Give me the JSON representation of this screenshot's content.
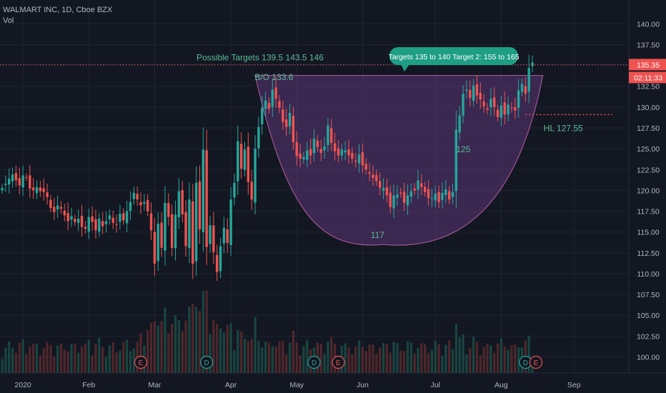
{
  "header": {
    "symbol_line": "WALMART INC, 1D, Cboe BZX",
    "volume_label": "Vol"
  },
  "chart_data": {
    "type": "candlestick",
    "title": "WALMART INC, 1D, Cboe BZX",
    "y_axis": {
      "min": 98.5,
      "max": 142,
      "ticks": [
        "100.00",
        "102.50",
        "105.00",
        "107.50",
        "110.00",
        "112.50",
        "115.00",
        "117.50",
        "120.00",
        "122.50",
        "125.00",
        "127.50",
        "130.00",
        "132.50",
        "135.00",
        "137.50",
        "140.00"
      ],
      "position": "right"
    },
    "x_axis": {
      "ticks": [
        {
          "label": "2020",
          "index": 6
        },
        {
          "label": "Feb",
          "index": 25
        },
        {
          "label": "Mar",
          "index": 44
        },
        {
          "label": "Apr",
          "index": 66
        },
        {
          "label": "May",
          "index": 85
        },
        {
          "label": "Jun",
          "index": 104
        },
        {
          "label": "Jul",
          "index": 125
        },
        {
          "label": "Aug",
          "index": 144
        },
        {
          "label": "Sep",
          "index": 165
        }
      ]
    },
    "last_price": {
      "value": 135.35,
      "label": "135.35",
      "countdown": "02:11:33"
    },
    "colors": {
      "up": "#26a69a",
      "down": "#ef5350",
      "cup_fill": "#6a3d8a",
      "cup_stroke": "#a25493",
      "annot_text": "#5dbb97",
      "price_line": "#ef5350",
      "callout_bg": "#1e9e85"
    },
    "annotations": {
      "possible_targets": {
        "text": "Possible Targets  139.5    143.5     146",
        "price": 135.1
      },
      "callout": {
        "text": "Targets 135 to 140 Target 2: 155 to 165"
      },
      "breakout": {
        "text": "B/O 133.6",
        "index": 84,
        "price": 133.6
      },
      "cup_bottom": {
        "text": "117",
        "index": 108,
        "price": 115.3
      },
      "handle_level": {
        "text": "125",
        "index": 131,
        "price": 124.6
      },
      "hl": {
        "text": "HL 127.55",
        "index": 148,
        "price": 126.7
      },
      "hl_line_price": 129.1
    },
    "events": [
      {
        "type": "E",
        "index": 40
      },
      {
        "type": "D",
        "index": 59
      },
      {
        "type": "D",
        "index": 90
      },
      {
        "type": "E",
        "index": 97
      },
      {
        "type": "D",
        "index": 151
      },
      {
        "type": "E",
        "index": 154
      }
    ],
    "closes": [
      120.3,
      120.8,
      121.4,
      121.9,
      121.2,
      120.6,
      121.8,
      121.5,
      120.2,
      120.0,
      120.4,
      119.9,
      119.8,
      119.2,
      117.9,
      117.4,
      118.2,
      117.8,
      117.0,
      116.3,
      116.9,
      116.2,
      116.6,
      115.6,
      115.4,
      116.8,
      116.2,
      115.2,
      116.6,
      115.7,
      116.3,
      117.0,
      116.1,
      115.9,
      117.2,
      116.4,
      117.5,
      118.6,
      119.7,
      118.9,
      118.2,
      118.6,
      117.5,
      115.2,
      111.2,
      116.0,
      113.1,
      118.5,
      116.8,
      113.1,
      117.1,
      119.9,
      117.1,
      113.3,
      118.9,
      111.2,
      120.9,
      115.3,
      124.9,
      113.2,
      115.8,
      112.6,
      110.2,
      113.3,
      115.5,
      113.7,
      118.9,
      120.9,
      125.9,
      122.6,
      124.9,
      121.0,
      118.9,
      125.0,
      127.6,
      129.9,
      130.8,
      129.8,
      132.1,
      131.0,
      129.9,
      128.2,
      127.6,
      129.3,
      125.8,
      124.1,
      123.8,
      124.0,
      124.8,
      124.2,
      126.2,
      125.2,
      124.5,
      125.3,
      127.8,
      125.7,
      124.7,
      124.2,
      124.9,
      124.8,
      124.2,
      123.8,
      123.5,
      124.3,
      123.0,
      122.5,
      122.0,
      121.5,
      121.1,
      120.3,
      120.3,
      119.4,
      118.0,
      119.4,
      119.5,
      119.6,
      118.5,
      119.4,
      119.9,
      120.0,
      121.2,
      120.4,
      119.8,
      119.1,
      119.1,
      119.6,
      118.6,
      119.7,
      120.1,
      118.9,
      119.8,
      127.3,
      129.0,
      131.6,
      132.1,
      131.1,
      132.6,
      131.4,
      130.9,
      130.1,
      129.7,
      131.0,
      130.0,
      128.8,
      130.2,
      129.1,
      130.3,
      129.9,
      129.6,
      132.0,
      132.8,
      131.6,
      134.7,
      135.35
    ]
  }
}
